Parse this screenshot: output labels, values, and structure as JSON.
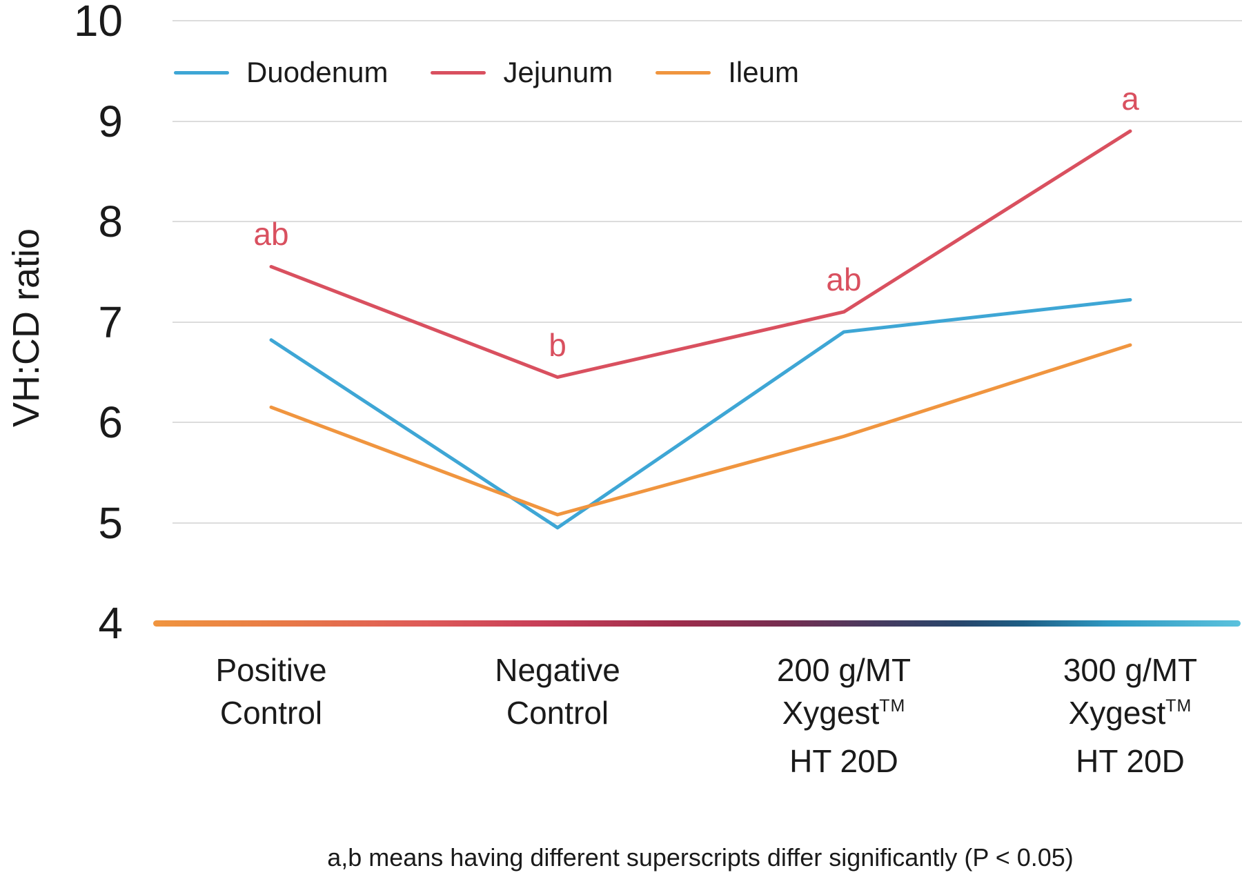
{
  "chart_data": {
    "type": "line",
    "title": "",
    "xlabel": "",
    "ylabel": "VH:CD ratio",
    "ylim": [
      4,
      10
    ],
    "yticks": [
      10,
      9,
      8,
      7,
      6,
      5,
      4
    ],
    "grid": "horizontal",
    "legend_position": "top-left",
    "categories": [
      {
        "lines": [
          {
            "text": "Positive"
          },
          {
            "text": "Control"
          }
        ]
      },
      {
        "lines": [
          {
            "text": "Negative"
          },
          {
            "text": "Control"
          }
        ]
      },
      {
        "lines": [
          {
            "text": "200 g/MT"
          },
          {
            "text": "Xygest",
            "sup": "TM"
          },
          {
            "text": "HT 20D"
          }
        ]
      },
      {
        "lines": [
          {
            "text": "300 g/MT"
          },
          {
            "text": "Xygest",
            "sup": "TM"
          },
          {
            "text": "HT 20D"
          }
        ]
      }
    ],
    "series": [
      {
        "name": "Duodenum",
        "color": "#3ea6d5",
        "values": [
          6.82,
          4.95,
          6.9,
          7.22
        ]
      },
      {
        "name": "Jejunum",
        "color": "#d9505f",
        "values": [
          7.55,
          6.45,
          7.1,
          8.9
        ]
      },
      {
        "name": "Ileum",
        "color": "#f0953f",
        "values": [
          6.15,
          5.08,
          5.86,
          6.77
        ]
      }
    ],
    "annotations": [
      {
        "text": "ab",
        "series": "Jejunum",
        "category_index": 0
      },
      {
        "text": "b",
        "series": "Jejunum",
        "category_index": 1
      },
      {
        "text": "ab",
        "series": "Jejunum",
        "category_index": 2
      },
      {
        "text": "a",
        "series": "Jejunum",
        "category_index": 3
      }
    ],
    "footnote": "a,b means having different superscripts differ significantly (P < 0.05)"
  },
  "colors": {
    "gridline": "#dcdcdc",
    "text": "#1a1a1a",
    "annotation": "#d9505f",
    "axis_gradient_stops": [
      "#f0953f 0%",
      "#e87a47 12%",
      "#de5a58 25%",
      "#c94058 35%",
      "#9e2d4c 48%",
      "#762e51 58%",
      "#4a3a5f 66%",
      "#28466b 74%",
      "#1e5e85 80%",
      "#2f99c2 88%",
      "#5bc2dd 100%"
    ]
  }
}
